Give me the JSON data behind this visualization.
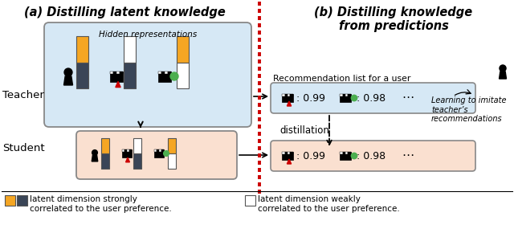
{
  "title_a": "(a) Distilling latent knowledge",
  "title_b": "(b) Distilling knowledge\nfrom predictions",
  "teacher_label": "Teacher",
  "student_label": "Student",
  "hidden_repr_label": "Hidden representations",
  "rec_list_label": "Recommendation list for a user",
  "distillation_label": "distillation",
  "imitate_label": "Learning to imitate\nteacher’s\nrecommendations",
  "score1": ": 0.99",
  "score2": ": 0.98",
  "ellipsis": "⋯",
  "legend_strong": "latent dimension strongly\ncorrelated to the user preference.",
  "legend_weak": "latent dimension weakly\ncorrelated to the user preference.",
  "orange_color": "#F5A623",
  "dark_color": "#3A4557",
  "light_blue_bg": "#D6E8F5",
  "light_peach_bg": "#FAE0D0",
  "red_dash_color": "#CC0000",
  "green_color": "#4CAF50",
  "white_color": "#FFFFFF",
  "border_color": "#888888",
  "fig_bg": "#FFFFFF",
  "black": "#000000"
}
